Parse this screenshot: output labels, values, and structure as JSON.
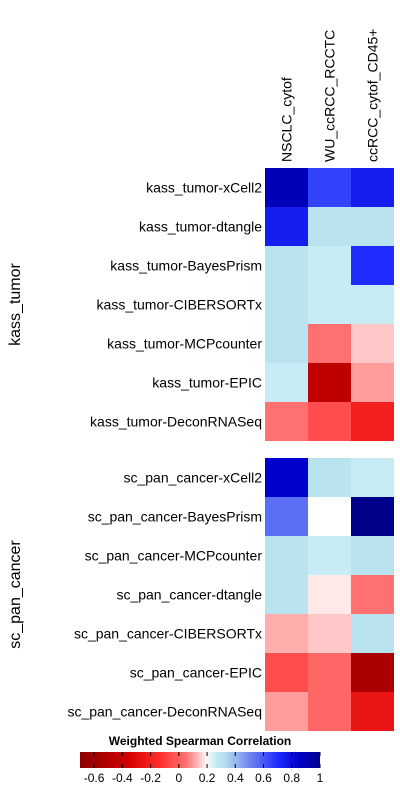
{
  "chart_data": {
    "type": "heatmap",
    "columns": [
      "NSCLC_cytof",
      "WU_ccRCC_RCCTC",
      "ccRCC_cytof_CD45+"
    ],
    "groups": [
      {
        "name": "kass_tumor",
        "rows": [
          {
            "label": "kass_tumor-xCell2",
            "values": [
              0.9,
              0.65,
              0.75
            ]
          },
          {
            "label": "kass_tumor-dtangle",
            "values": [
              0.75,
              0.3,
              0.3
            ]
          },
          {
            "label": "kass_tumor-BayesPrism",
            "values": [
              0.3,
              0.25,
              0.7
            ]
          },
          {
            "label": "kass_tumor-CIBERSORTx",
            "values": [
              0.3,
              0.25,
              0.25
            ]
          },
          {
            "label": "kass_tumor-MCPcounter",
            "values": [
              0.3,
              0.05,
              0.15
            ]
          },
          {
            "label": "kass_tumor-EPIC",
            "values": [
              0.25,
              -0.45,
              0.1
            ]
          },
          {
            "label": "kass_tumor-DeconRNASeq",
            "values": [
              0.05,
              -0.05,
              -0.2
            ]
          }
        ]
      },
      {
        "name": "sc_pan_cancer",
        "rows": [
          {
            "label": "sc_pan_cancer-xCell2",
            "values": [
              0.85,
              0.3,
              0.25
            ]
          },
          {
            "label": "sc_pan_cancer-BayesPrism",
            "values": [
              0.55,
              0.2,
              1.0
            ]
          },
          {
            "label": "sc_pan_cancer-MCPcounter",
            "values": [
              0.3,
              0.25,
              0.3
            ]
          },
          {
            "label": "sc_pan_cancer-dtangle",
            "values": [
              0.3,
              0.18,
              0.05
            ]
          },
          {
            "label": "sc_pan_cancer-CIBERSORTx",
            "values": [
              0.12,
              0.15,
              0.3
            ]
          },
          {
            "label": "sc_pan_cancer-EPIC",
            "values": [
              -0.05,
              0.02,
              -0.55
            ]
          },
          {
            "label": "sc_pan_cancer-DeconRNASeq",
            "values": [
              0.1,
              0.02,
              -0.25
            ]
          }
        ]
      }
    ],
    "legend": {
      "title": "Weighted Spearman Correlation",
      "ticks": [
        "-0.6",
        "-0.4",
        "-0.2",
        "0",
        "0.2",
        "0.4",
        "0.6",
        "0.8",
        "1"
      ],
      "range": [
        -0.7,
        1.0
      ],
      "position": "bottom"
    },
    "color_scale": [
      {
        "v": -0.7,
        "c": "#8b0000"
      },
      {
        "v": -0.35,
        "c": "#d40000"
      },
      {
        "v": -0.15,
        "c": "#ff2a2a"
      },
      {
        "v": 0.05,
        "c": "#ff7070"
      },
      {
        "v": 0.16,
        "c": "#ffd0d0"
      },
      {
        "v": 0.2,
        "c": "#ffffff"
      },
      {
        "v": 0.25,
        "c": "#c8ecf6"
      },
      {
        "v": 0.32,
        "c": "#b5e0ee"
      },
      {
        "v": 0.5,
        "c": "#6f86f0"
      },
      {
        "v": 0.7,
        "c": "#1f2cff"
      },
      {
        "v": 0.85,
        "c": "#0000cc"
      },
      {
        "v": 1.0,
        "c": "#00008b"
      }
    ]
  }
}
